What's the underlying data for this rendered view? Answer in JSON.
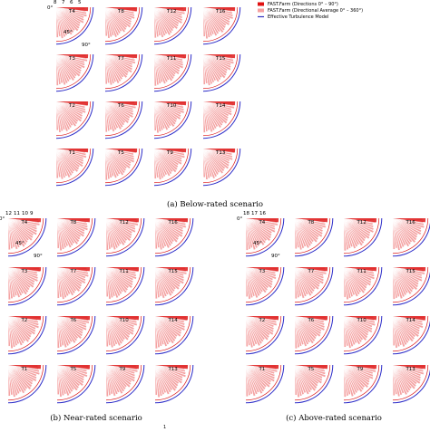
{
  "legend": {
    "items": [
      {
        "label": "FAST.Farm (Directions 0° – 90°)",
        "color": "#e01010"
      },
      {
        "label": "FAST.Farm (Directional Average 0° – 360°)",
        "color": "#f5a0a0"
      },
      {
        "label": "Effective Turbulence Model",
        "color": "#3030c0"
      }
    ]
  },
  "colors": {
    "fan_fill": "#f4a3a3",
    "fan_line": "#ffffff",
    "dark_wedge": "#dd1a1a",
    "blue_arc": "#2c2cc8"
  },
  "angle_labels": {
    "a0": "0°",
    "a45": "45°",
    "a90": "90°"
  },
  "turbines": [
    [
      "T4",
      "T8",
      "T12",
      "T16"
    ],
    [
      "T3",
      "T7",
      "T11",
      "T15"
    ],
    [
      "T2",
      "T6",
      "T10",
      "T14"
    ],
    [
      "T1",
      "T5",
      "T9",
      "T13"
    ]
  ],
  "panels": [
    {
      "id": "a",
      "caption": "(a) Below-rated scenario",
      "ticks": [
        "8",
        "7",
        "6",
        "5"
      ]
    },
    {
      "id": "b",
      "caption": "(b) Near-rated scenario",
      "ticks": [
        "12",
        "11",
        "10",
        "9"
      ]
    },
    {
      "id": "c",
      "caption": "(c) Above-rated scenario",
      "ticks": [
        "18",
        "17",
        "16"
      ]
    }
  ],
  "footnote": "1"
}
